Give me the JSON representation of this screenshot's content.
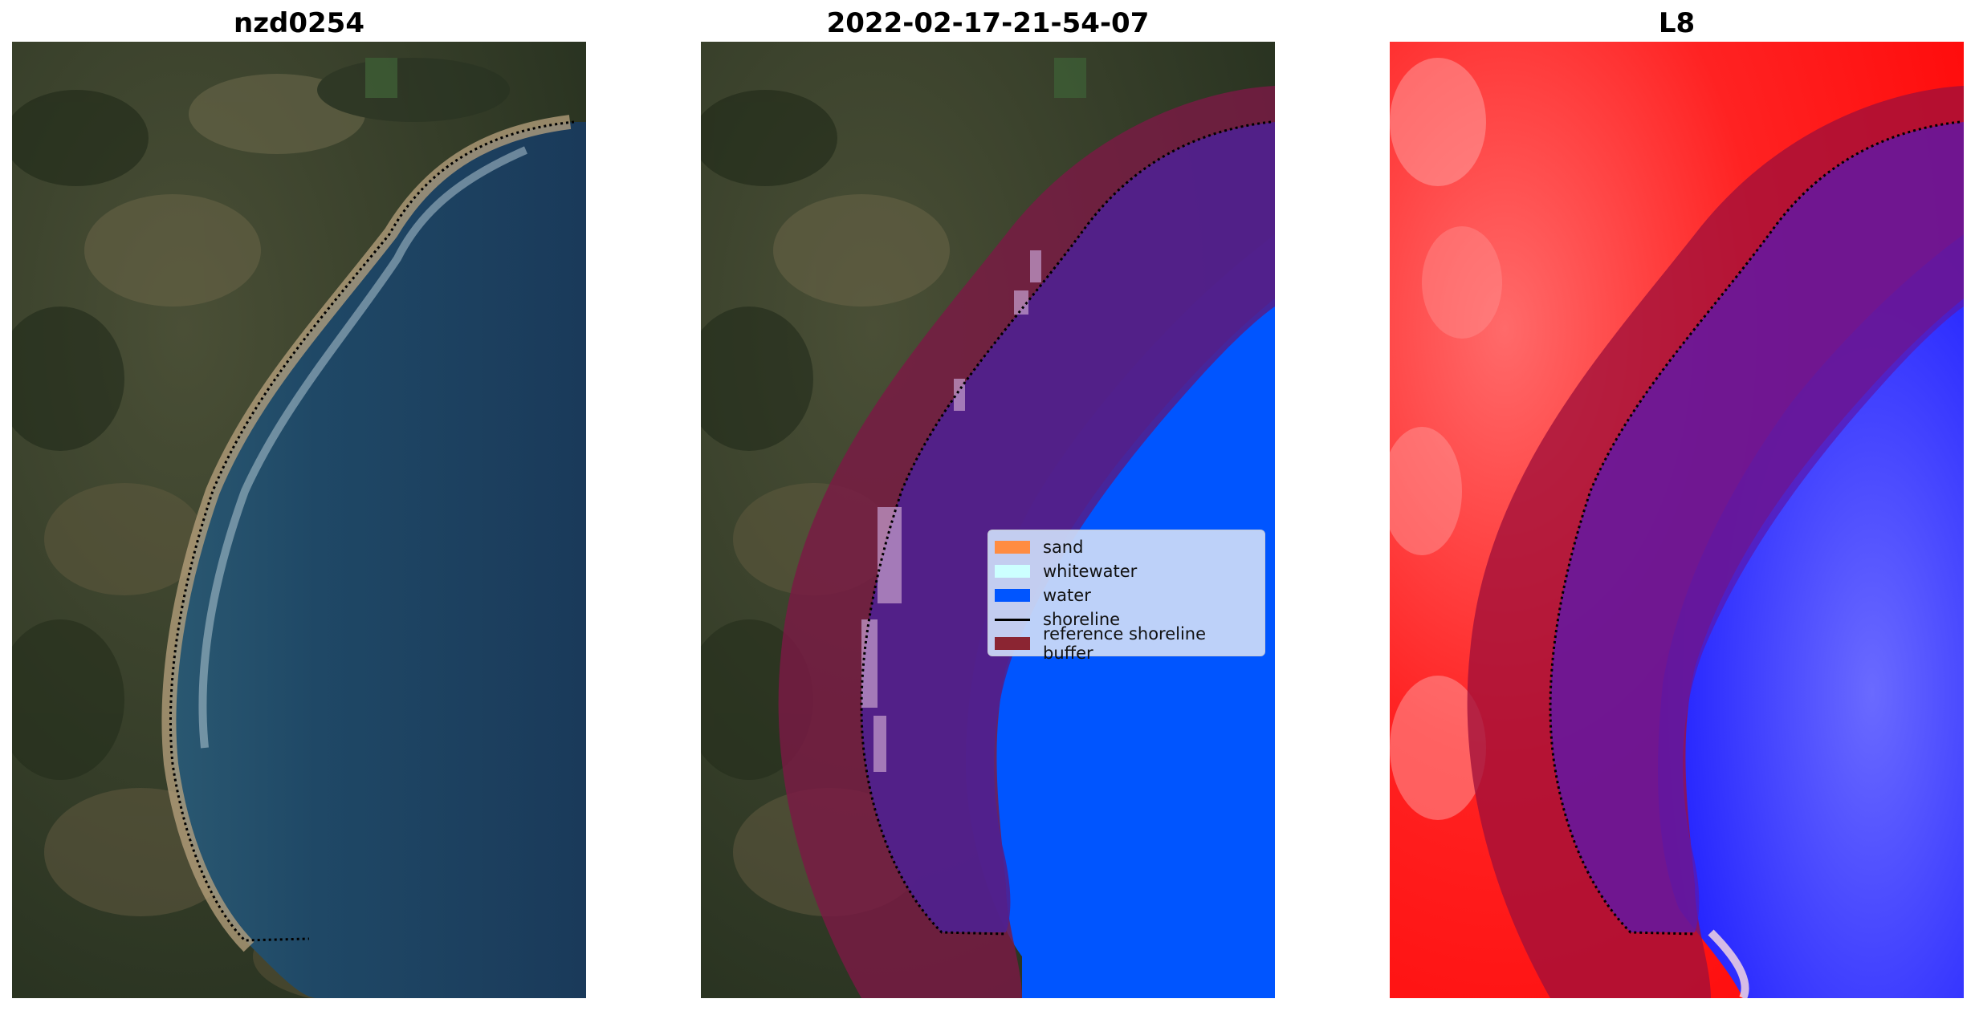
{
  "panels": [
    {
      "title": "nzd0254"
    },
    {
      "title": "2022-02-17-21-54-07"
    },
    {
      "title": "L8"
    }
  ],
  "legend": {
    "entries": [
      {
        "label": "sand",
        "color": "#ff8c42",
        "kind": "patch"
      },
      {
        "label": "whitewater",
        "color": "#ccffff",
        "kind": "patch"
      },
      {
        "label": "water",
        "color": "#0055ff",
        "kind": "patch"
      },
      {
        "label": "shoreline",
        "color": "#000000",
        "kind": "line"
      },
      {
        "label": "reference shoreline buffer",
        "color": "#8b2532",
        "kind": "patch"
      }
    ]
  },
  "colors": {
    "land": "#2f3a22",
    "sea": "#1b3b58",
    "water_class": "#0055ff",
    "buffer": "#7a1a44",
    "ndwi_land": "#ff1a1a",
    "ndwi_water": "#2a2aff"
  }
}
